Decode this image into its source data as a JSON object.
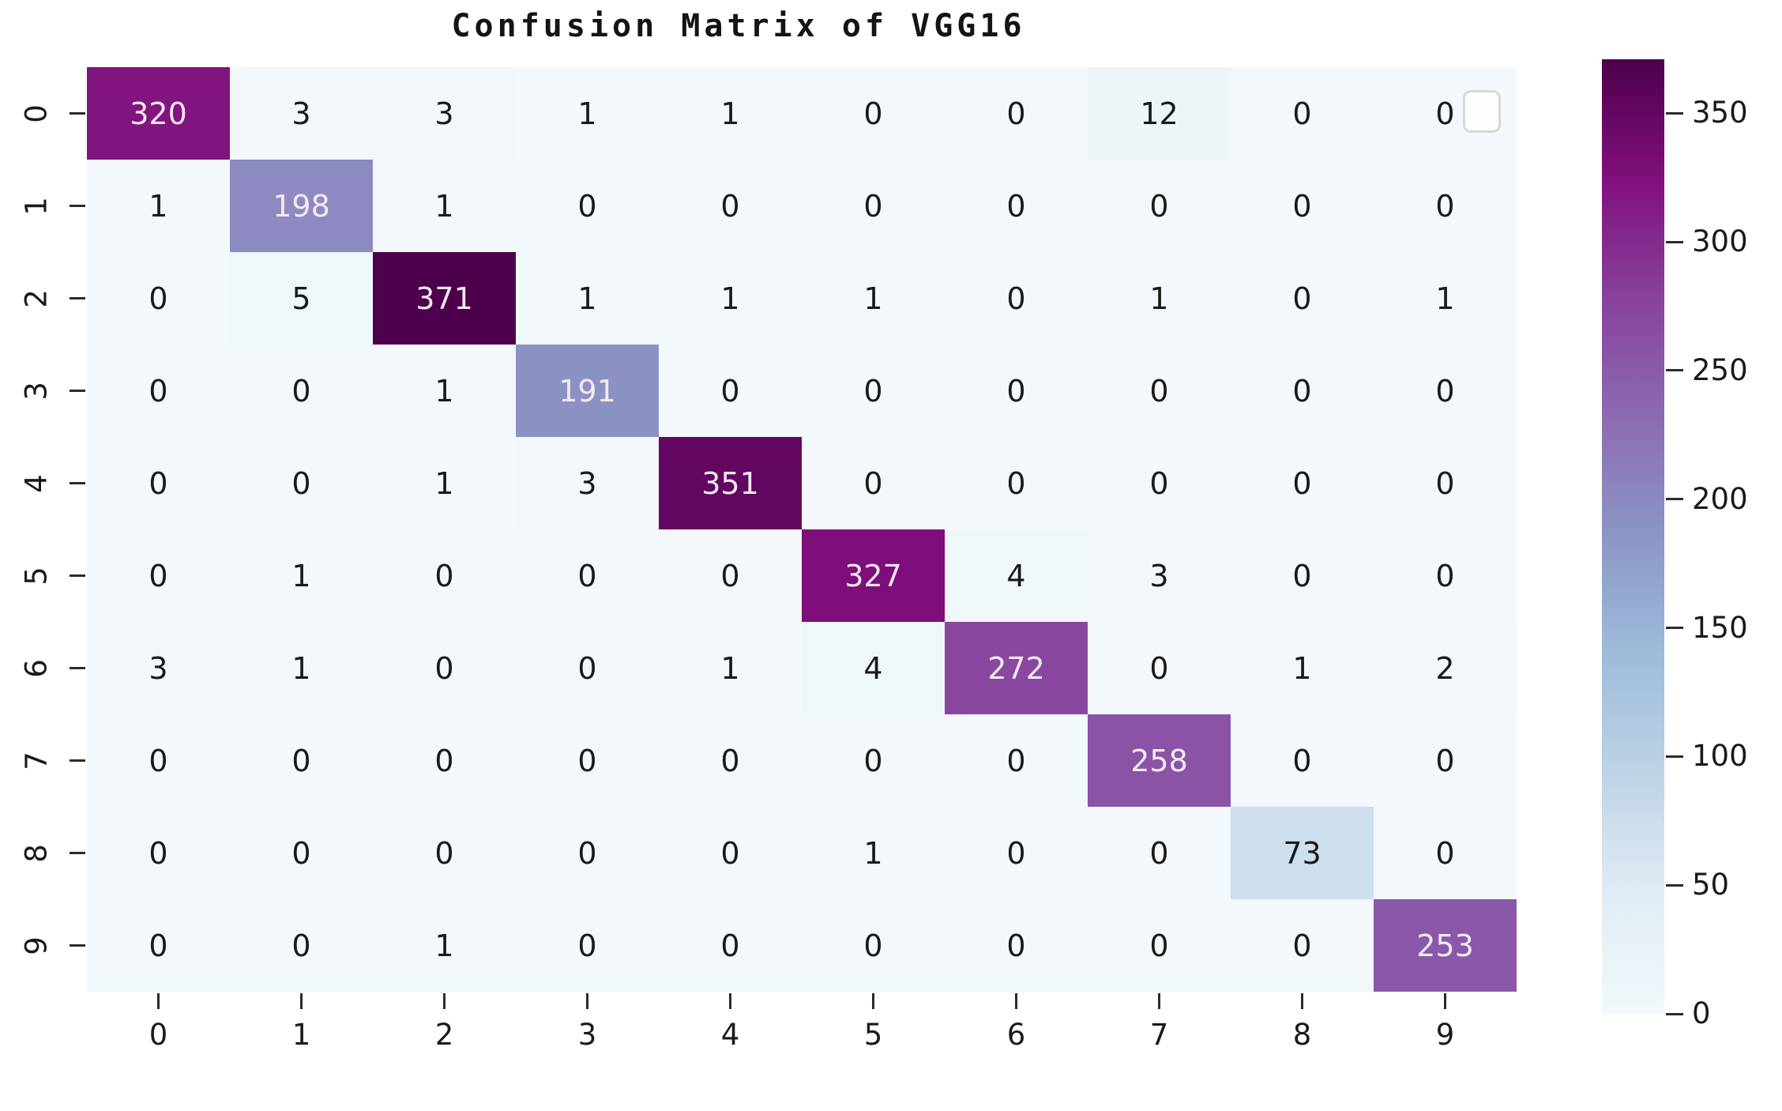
{
  "title": "Confusion Matrix of VGG16",
  "chart_data": {
    "type": "heatmap",
    "title": "Confusion Matrix of VGG16",
    "xlabel": "",
    "ylabel": "",
    "x_tick_labels": [
      "0",
      "1",
      "2",
      "3",
      "4",
      "5",
      "6",
      "7",
      "8",
      "9"
    ],
    "y_tick_labels": [
      "0",
      "1",
      "2",
      "3",
      "4",
      "5",
      "6",
      "7",
      "8",
      "9"
    ],
    "matrix": [
      [
        320,
        3,
        3,
        1,
        1,
        0,
        0,
        12,
        0,
        0
      ],
      [
        1,
        198,
        1,
        0,
        0,
        0,
        0,
        0,
        0,
        0
      ],
      [
        0,
        5,
        371,
        1,
        1,
        1,
        0,
        1,
        0,
        1
      ],
      [
        0,
        0,
        1,
        191,
        0,
        0,
        0,
        0,
        0,
        0
      ],
      [
        0,
        0,
        1,
        3,
        351,
        0,
        0,
        0,
        0,
        0
      ],
      [
        0,
        1,
        0,
        0,
        0,
        327,
        4,
        3,
        0,
        0
      ],
      [
        3,
        1,
        0,
        0,
        1,
        4,
        272,
        0,
        1,
        2
      ],
      [
        0,
        0,
        0,
        0,
        0,
        0,
        0,
        258,
        0,
        0
      ],
      [
        0,
        0,
        0,
        0,
        0,
        1,
        0,
        0,
        73,
        0
      ],
      [
        0,
        0,
        1,
        0,
        0,
        0,
        0,
        0,
        0,
        253
      ]
    ],
    "vmin": 0,
    "vmax": 371,
    "colormap_name": "BuPu",
    "colormap_stops": [
      "#f2f8fb",
      "#e0ecf4",
      "#bfd3e6",
      "#9ebcda",
      "#8c96c6",
      "#8c6bb1",
      "#88419d",
      "#810f7c",
      "#4d004b"
    ],
    "colorbar_ticks": [
      0,
      50,
      100,
      150,
      200,
      250,
      300,
      350
    ],
    "annot_color_on_dark": "#f3e9f3",
    "annot_color_on_light": "#1a1a1a",
    "tick_color": "#2b2b2b",
    "legend_on": false,
    "grid_on": false
  }
}
